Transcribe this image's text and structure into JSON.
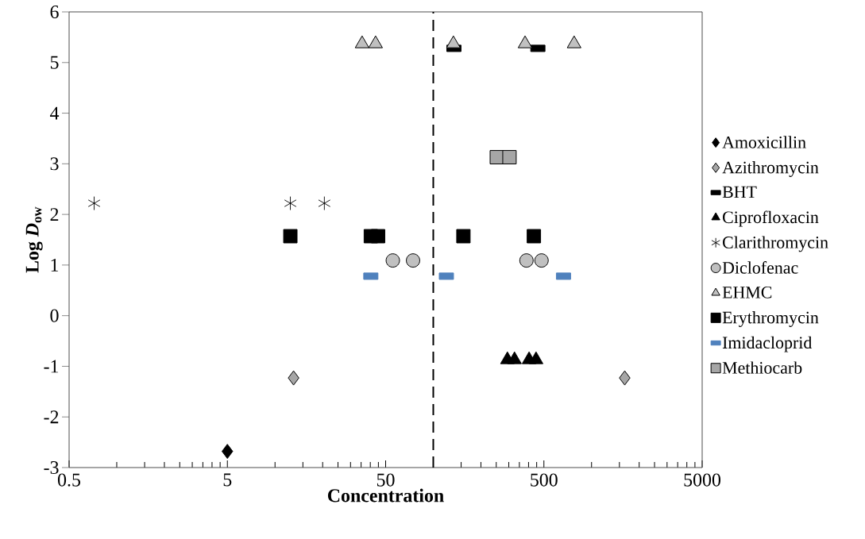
{
  "chart_data": {
    "type": "scatter",
    "xlabel": "Concentration",
    "ylabel": "Log *D*$_{ow}$",
    "log": "x",
    "xlim": [
      0.5,
      5000
    ],
    "ylim": [
      -3,
      6
    ],
    "xticks": [
      0.5,
      5,
      50,
      500,
      5000
    ],
    "yticks": [
      -3,
      -2,
      -1,
      0,
      1,
      2,
      3,
      4,
      5,
      6
    ],
    "legend": "right",
    "grid": false,
    "ref_lines": [
      {
        "axis": "x",
        "value": 100,
        "color": "#000000",
        "line_style": "dashed"
      }
    ],
    "series": [
      {
        "name": "Amoxicillin",
        "color": "#000000",
        "marker": "diamond",
        "x": [
          5.0
        ],
        "values": [
          -2.68
        ]
      },
      {
        "name": "Azithromycin",
        "color": "#a6a6a6",
        "marker": "diamond",
        "x": [
          13.1,
          1620
        ],
        "values": [
          -1.23,
          -1.23
        ]
      },
      {
        "name": "BHT",
        "color": "#000000",
        "x": [
          135,
          458
        ],
        "values": [
          5.28,
          5.28
        ]
      },
      {
        "name": "Ciprofloxacin",
        "color": "#000000",
        "marker": "triangle",
        "x": [
          294,
          326,
          403,
          446
        ],
        "values": [
          -0.87,
          -0.87,
          -0.87,
          -0.87
        ]
      },
      {
        "name": "Clarithromycin",
        "color": "#000000",
        "marker": "cross",
        "x": [
          0.72,
          12.5,
          20.5
        ],
        "values": [
          2.22,
          2.22,
          2.22
        ]
      },
      {
        "name": "Diclofenac",
        "color": "#c0c0c0",
        "marker": "circle",
        "x": [
          55.5,
          74.5,
          388,
          483
        ],
        "values": [
          1.09,
          1.09,
          1.09,
          1.09
        ]
      },
      {
        "name": "EHMC",
        "color": "#c0c0c0",
        "marker": "triangle",
        "x": [
          35.5,
          43.2,
          134,
          380,
          776
        ],
        "values": [
          5.37,
          5.37,
          5.37,
          5.37,
          5.37
        ]
      },
      {
        "name": "Erythromycin",
        "color": "#000000",
        "marker": "square",
        "x": [
          12.5,
          40.3,
          44.8,
          155,
          432
        ],
        "values": [
          1.57,
          1.57,
          1.57,
          1.57,
          1.57
        ]
      },
      {
        "name": "Imidacloprid",
        "color": "#4f81bd",
        "x": [
          40.3,
          121,
          665
        ],
        "values": [
          0.78,
          0.78,
          0.78
        ]
      },
      {
        "name": "Methiocarb",
        "color": "#a6a6a6",
        "marker": "square",
        "x": [
          252,
          303
        ],
        "values": [
          3.13,
          3.13
        ]
      }
    ]
  }
}
